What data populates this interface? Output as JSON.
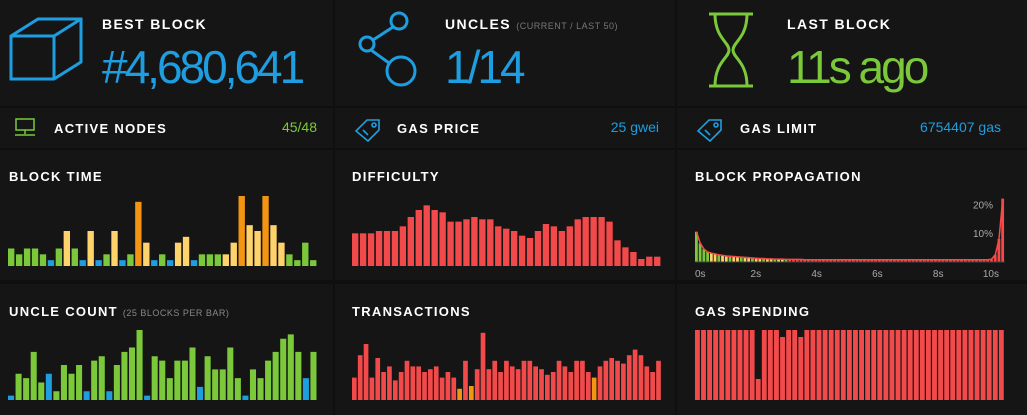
{
  "colors": {
    "blue": "#1e9ee0",
    "green": "#7bc93a",
    "yellow": "#ffd36b",
    "orange": "#f39512",
    "red": "#f24a4a",
    "darkbg": "#151515"
  },
  "best_block": {
    "label": "BEST BLOCK",
    "value": "#4,680,641",
    "icon": "cube-icon"
  },
  "uncles": {
    "label": "UNCLES",
    "sub": "(CURRENT / LAST 50)",
    "value": "1/14",
    "icon": "uncles-graph-icon"
  },
  "last_block": {
    "label": "LAST BLOCK",
    "value": "11s ago",
    "icon": "hourglass-icon"
  },
  "active_nodes": {
    "label": "ACTIVE NODES",
    "value": "45/48",
    "icon": "node-monitor-icon"
  },
  "gas_price": {
    "label": "GAS PRICE",
    "value": "25 gwei",
    "icon": "tag-icon"
  },
  "gas_limit": {
    "label": "GAS LIMIT",
    "value": "6754407 gas",
    "icon": "tag-icon"
  },
  "block_time": {
    "label": "BLOCK TIME"
  },
  "difficulty": {
    "label": "DIFFICULTY"
  },
  "block_propagation": {
    "label": "BLOCK PROPAGATION"
  },
  "uncle_count": {
    "label": "UNCLE COUNT",
    "sub": "(25 BLOCKS PER BAR)"
  },
  "transactions": {
    "label": "TRANSACTIONS"
  },
  "gas_spending": {
    "label": "GAS SPENDING"
  },
  "chart_data": [
    {
      "id": "block_time",
      "type": "bar",
      "values": [
        3,
        2,
        3,
        3,
        2,
        1,
        3,
        6,
        3,
        1,
        6,
        1,
        2,
        6,
        1,
        2,
        11,
        4,
        1,
        2,
        1,
        4,
        5,
        1,
        2,
        2,
        2,
        2,
        4,
        12,
        7,
        6,
        12,
        7,
        4,
        2,
        1,
        4,
        1
      ],
      "colors": [
        "g",
        "g",
        "g",
        "g",
        "g",
        "b",
        "g",
        "y",
        "g",
        "b",
        "y",
        "b",
        "g",
        "y",
        "b",
        "g",
        "o",
        "y",
        "b",
        "g",
        "b",
        "y",
        "y",
        "b",
        "g",
        "g",
        "g",
        "y",
        "y",
        "o",
        "y",
        "y",
        "o",
        "y",
        "y",
        "g",
        "g",
        "g",
        "g"
      ],
      "ylim": [
        0,
        12
      ]
    },
    {
      "id": "difficulty",
      "type": "bar",
      "values": [
        14,
        14,
        14,
        15,
        15,
        15,
        17,
        21,
        24,
        26,
        24,
        23,
        19,
        19,
        20,
        21,
        20,
        20,
        17,
        16,
        15,
        13,
        12,
        15,
        18,
        17,
        15,
        17,
        20,
        21,
        21,
        21,
        19,
        11,
        8,
        6,
        3,
        4,
        4
      ],
      "ylim": [
        0,
        30
      ]
    },
    {
      "id": "block_propagation",
      "type": "histogram",
      "x_ticks": [
        "0s",
        "2s",
        "4s",
        "6s",
        "8s",
        "10s"
      ],
      "y_ticks": [
        "20%",
        "10%"
      ],
      "values": [
        10.5,
        6.5,
        4.5,
        3.5,
        3.1,
        2.8,
        2.5,
        2.3,
        2.1,
        2.0,
        1.9,
        1.8,
        1.7,
        1.6,
        1.5,
        1.4,
        1.3,
        1.2,
        1.2,
        1.1,
        1.1,
        1.0,
        1.0,
        1.0,
        0.9,
        0.9,
        0.9,
        0.9,
        0.9,
        0.8,
        0.8,
        0.8,
        0.8,
        0.8,
        0.8,
        0.8,
        0.8,
        0.8,
        0.8,
        0.8,
        0.8,
        0.8,
        0.8,
        0.8,
        0.8,
        0.8,
        0.8,
        0.8,
        0.8,
        0.8,
        0.8,
        0.8,
        0.8,
        0.8,
        0.8,
        0.8,
        0.8,
        0.8,
        0.8,
        0.8,
        0.8,
        0.8,
        0.8,
        0.8,
        0.8,
        0.8,
        0.8,
        0.8,
        0.8,
        0.8,
        0.8,
        0.8,
        0.8,
        0.8,
        0.8,
        0.8,
        0.8,
        0.8,
        0.8,
        1.0,
        2.5,
        8,
        22
      ],
      "ylim": [
        0,
        25
      ]
    },
    {
      "id": "uncle_count",
      "type": "bar",
      "values": [
        1,
        6,
        5,
        11,
        4,
        6,
        2,
        8,
        6,
        8,
        2,
        9,
        10,
        2,
        8,
        11,
        12,
        16,
        1,
        10,
        9,
        5,
        9,
        9,
        12,
        3,
        10,
        7,
        7,
        12,
        5,
        1,
        7,
        5,
        9,
        11,
        14,
        15,
        11,
        5,
        11
      ],
      "colors": [
        "b",
        "g",
        "g",
        "g",
        "g",
        "b",
        "g",
        "g",
        "g",
        "g",
        "b",
        "g",
        "g",
        "b",
        "g",
        "g",
        "g",
        "g",
        "b",
        "g",
        "g",
        "g",
        "g",
        "g",
        "g",
        "b",
        "g",
        "g",
        "g",
        "g",
        "g",
        "b",
        "g",
        "g",
        "g",
        "g",
        "g",
        "g",
        "g",
        "b",
        "g"
      ],
      "ylim": [
        0,
        16
      ]
    },
    {
      "id": "transactions",
      "type": "bar",
      "values": [
        8,
        16,
        20,
        8,
        15,
        10,
        12,
        7,
        10,
        14,
        12,
        12,
        10,
        11,
        12,
        8,
        10,
        8,
        4,
        14,
        5,
        11,
        24,
        11,
        14,
        10,
        14,
        12,
        11,
        14,
        14,
        12,
        11,
        9,
        10,
        14,
        12,
        10,
        14,
        14,
        10,
        8,
        12,
        14,
        15,
        14,
        13,
        16,
        18,
        16,
        12,
        10,
        14
      ],
      "colors": [
        "r",
        "r",
        "r",
        "r",
        "r",
        "r",
        "r",
        "r",
        "r",
        "r",
        "r",
        "r",
        "r",
        "r",
        "r",
        "r",
        "r",
        "r",
        "o",
        "r",
        "o",
        "r",
        "r",
        "r",
        "r",
        "r",
        "r",
        "r",
        "r",
        "r",
        "r",
        "r",
        "r",
        "r",
        "r",
        "r",
        "r",
        "r",
        "r",
        "r",
        "r",
        "o",
        "r",
        "r",
        "r",
        "r",
        "r",
        "r",
        "r",
        "r",
        "r",
        "r",
        "r"
      ],
      "ylim": [
        0,
        25
      ]
    },
    {
      "id": "gas_spending",
      "type": "bar",
      "values": [
        10,
        10,
        10,
        10,
        10,
        10,
        10,
        10,
        10,
        10,
        3,
        10,
        10,
        10,
        9,
        10,
        10,
        9,
        10,
        10,
        10,
        10,
        10,
        10,
        10,
        10,
        10,
        10,
        10,
        10,
        10,
        10,
        10,
        10,
        10,
        10,
        10,
        10,
        10,
        10,
        10,
        10,
        10,
        10,
        10,
        10,
        10,
        10,
        10,
        10,
        10
      ],
      "ylim": [
        0,
        10
      ]
    }
  ]
}
